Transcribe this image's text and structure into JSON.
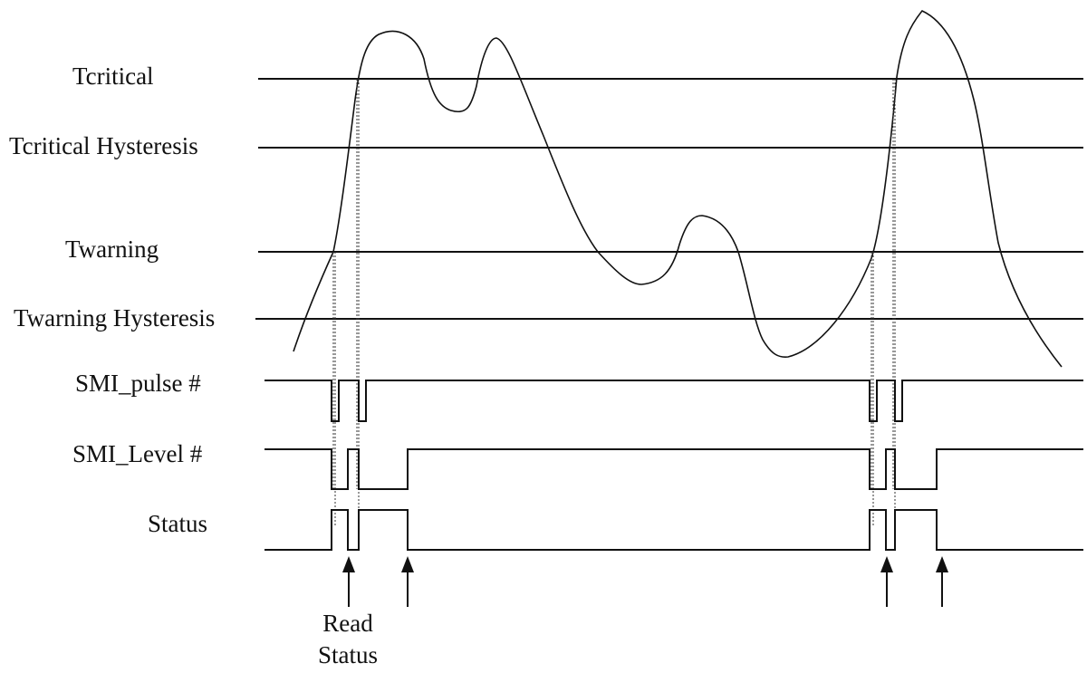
{
  "thresholds": {
    "t_critical": "Tcritical",
    "t_critical_hysteresis": "Tcritical Hysteresis",
    "t_warning": "Twarning",
    "t_warning_hysteresis": "Twarning Hysteresis"
  },
  "signals": {
    "smi_pulse": "SMI_pulse #",
    "smi_level": "SMI_Level #",
    "status": "Status"
  },
  "annotation": {
    "read_line1": "Read",
    "read_line2": "Status"
  },
  "colors": {
    "ink": "#111111",
    "background": "#ffffff"
  }
}
